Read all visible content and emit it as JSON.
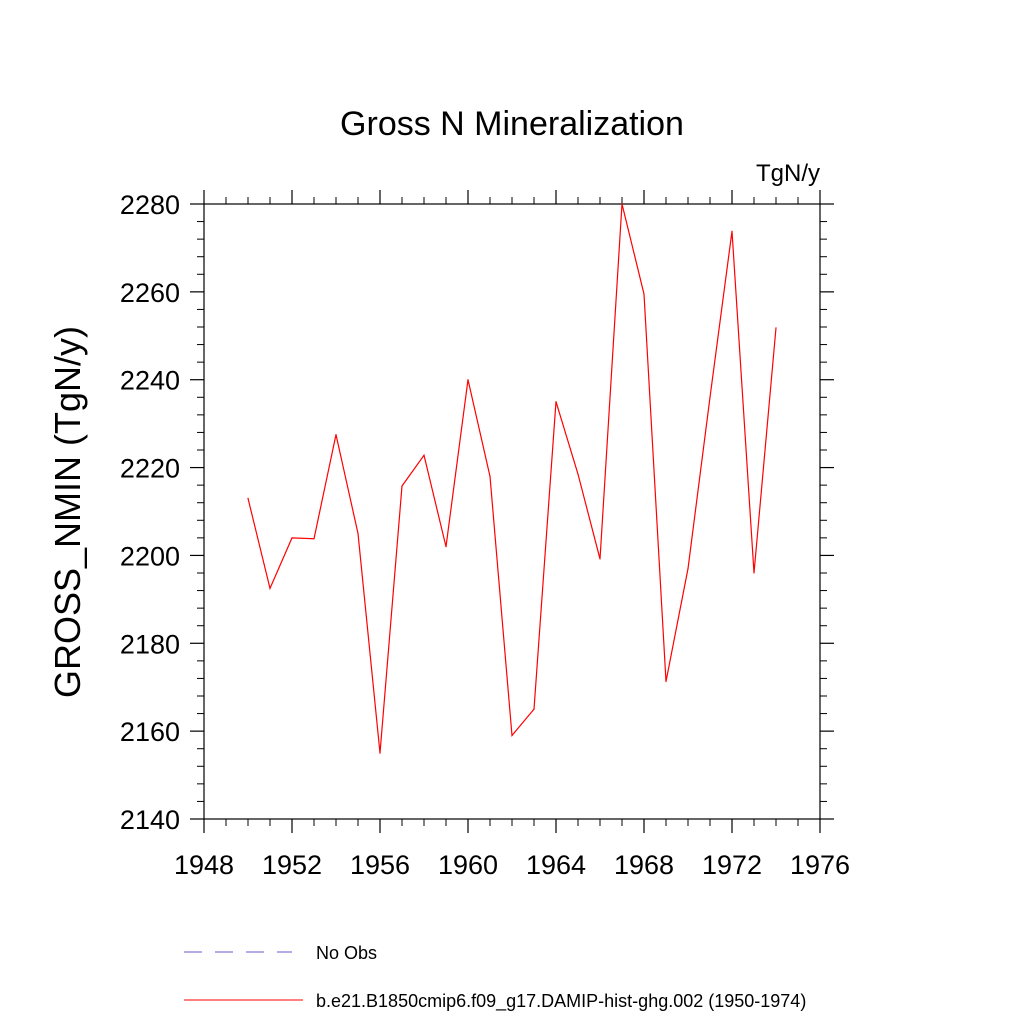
{
  "chart_data": {
    "type": "line",
    "title": "Gross N Mineralization",
    "units_label": "TgN/y",
    "ylabel": "GROSS_NMIN  (TgN/y)",
    "xlabel": "",
    "xlim": [
      1948,
      1976
    ],
    "ylim": [
      2140,
      2280
    ],
    "x_ticks": [
      1948,
      1952,
      1956,
      1960,
      1964,
      1968,
      1972,
      1976
    ],
    "y_ticks": [
      2140,
      2160,
      2180,
      2200,
      2220,
      2240,
      2260,
      2280
    ],
    "grid": false,
    "series": [
      {
        "name": "b.e21.B1850cmip6.f09_g17.DAMIP-hist-ghg.002 (1950-1974)",
        "color": "#ff0000",
        "style": "solid",
        "x": [
          1950,
          1951,
          1952,
          1953,
          1954,
          1955,
          1956,
          1957,
          1958,
          1959,
          1960,
          1961,
          1962,
          1963,
          1964,
          1965,
          1966,
          1967,
          1968,
          1969,
          1970,
          1971,
          1972,
          1973,
          1974
        ],
        "y": [
          2213,
          2192.5,
          2204,
          2203.8,
          2227.5,
          2205,
          2155,
          2215.8,
          2222.8,
          2202,
          2240,
          2218,
          2159,
          2165,
          2235,
          2218.5,
          2199.2,
          2280,
          2259.5,
          2171.3,
          2197,
          2236,
          2273.8,
          2196,
          2251.8
        ]
      }
    ],
    "legend": [
      {
        "label": "No Obs",
        "color": "#6a5acd",
        "style": "dashed"
      },
      {
        "label": "b.e21.B1850cmip6.f09_g17.DAMIP-hist-ghg.002 (1950-1974)",
        "color": "#ff0000",
        "style": "solid"
      }
    ],
    "legend_position": "bottom"
  }
}
